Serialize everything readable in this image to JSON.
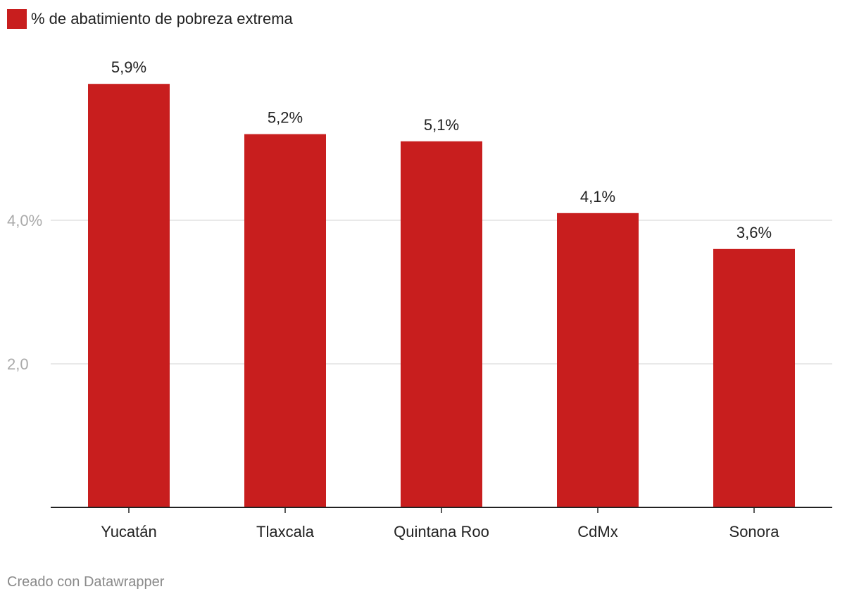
{
  "legend": {
    "label": "% de abatimiento de pobreza extrema",
    "color": "#c81e1e"
  },
  "footer": {
    "credit": "Creado con Datawrapper"
  },
  "colors": {
    "bar": "#c81e1e",
    "grid": "#e2e2e2",
    "axis": "#222222",
    "tick_text": "#aaaaaa",
    "label_text": "#222222"
  },
  "chart_data": {
    "type": "bar",
    "categories": [
      "Yucatán",
      "Tlaxcala",
      "Quintana Roo",
      "CdMx",
      "Sonora"
    ],
    "values": [
      5.9,
      5.2,
      5.1,
      4.1,
      3.6
    ],
    "value_labels": [
      "5,9%",
      "5,2%",
      "5,1%",
      "4,1%",
      "3,6%"
    ],
    "y_ticks": [
      {
        "value": 2,
        "label": "2,0"
      },
      {
        "value": 4,
        "label": "4,0%"
      }
    ],
    "ylim": [
      0,
      6.3
    ],
    "grid": true,
    "legend_position": "top-left"
  }
}
